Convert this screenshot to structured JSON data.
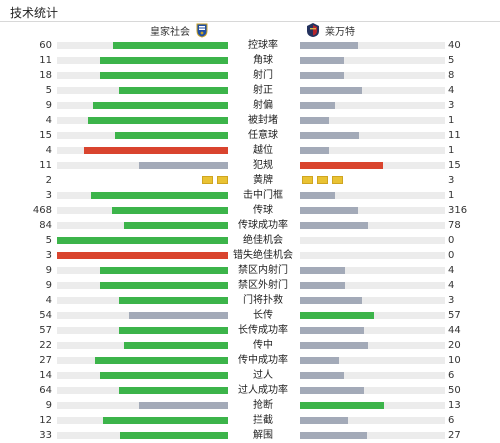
{
  "title": "技术统计",
  "home": {
    "name": "皇家社会",
    "logo_icon": "real-sociedad-crest-icon"
  },
  "away": {
    "name": "莱万特",
    "logo_icon": "levante-crest-icon"
  },
  "colors": {
    "green": "#3cb44a",
    "red": "#d9442e",
    "gray": "#a3aab8",
    "yellow": "#e9c233",
    "track": "#ececec"
  },
  "stats": [
    {
      "label": "控球率",
      "home": "60",
      "away": "40",
      "home_frac": 0.67,
      "away_frac": 0.4,
      "home_color": "green",
      "away_color": "gray"
    },
    {
      "label": "角球",
      "home": "11",
      "away": "5",
      "home_frac": 0.75,
      "away_frac": 0.3,
      "home_color": "green",
      "away_color": "gray"
    },
    {
      "label": "射门",
      "home": "18",
      "away": "8",
      "home_frac": 0.75,
      "away_frac": 0.3,
      "home_color": "green",
      "away_color": "gray"
    },
    {
      "label": "射正",
      "home": "5",
      "away": "4",
      "home_frac": 0.64,
      "away_frac": 0.43,
      "home_color": "green",
      "away_color": "gray"
    },
    {
      "label": "射偏",
      "home": "9",
      "away": "3",
      "home_frac": 0.79,
      "away_frac": 0.24,
      "home_color": "green",
      "away_color": "gray"
    },
    {
      "label": "被封堵",
      "home": "4",
      "away": "1",
      "home_frac": 0.82,
      "away_frac": 0.2,
      "home_color": "green",
      "away_color": "gray"
    },
    {
      "label": "任意球",
      "home": "15",
      "away": "11",
      "home_frac": 0.66,
      "away_frac": 0.41,
      "home_color": "green",
      "away_color": "gray"
    },
    {
      "label": "越位",
      "home": "4",
      "away": "1",
      "home_frac": 0.84,
      "away_frac": 0.2,
      "home_color": "red",
      "away_color": "gray"
    },
    {
      "label": "犯规",
      "home": "11",
      "away": "15",
      "home_frac": 0.52,
      "away_frac": 0.57,
      "home_color": "gray",
      "away_color": "red"
    },
    {
      "label": "黄牌",
      "home": "2",
      "away": "3",
      "home_cards": 2,
      "away_cards": 3
    },
    {
      "label": "击中门框",
      "home": "3",
      "away": "1",
      "home_frac": 0.8,
      "away_frac": 0.24,
      "home_color": "green",
      "away_color": "gray"
    },
    {
      "label": "传球",
      "home": "468",
      "away": "316",
      "home_frac": 0.68,
      "away_frac": 0.4,
      "home_color": "green",
      "away_color": "gray"
    },
    {
      "label": "传球成功率",
      "home": "84",
      "away": "78",
      "home_frac": 0.61,
      "away_frac": 0.47,
      "home_color": "green",
      "away_color": "gray"
    },
    {
      "label": "绝佳机会",
      "home": "5",
      "away": "0",
      "home_frac": 1.0,
      "away_frac": 0.0,
      "home_color": "green",
      "away_color": "gray"
    },
    {
      "label": "错失绝佳机会",
      "home": "3",
      "away": "0",
      "home_frac": 1.0,
      "away_frac": 0.0,
      "home_color": "red",
      "away_color": "gray"
    },
    {
      "label": "禁区内射门",
      "home": "9",
      "away": "4",
      "home_frac": 0.75,
      "away_frac": 0.31,
      "home_color": "green",
      "away_color": "gray"
    },
    {
      "label": "禁区外射门",
      "home": "9",
      "away": "4",
      "home_frac": 0.75,
      "away_frac": 0.31,
      "home_color": "green",
      "away_color": "gray"
    },
    {
      "label": "门将扑救",
      "home": "4",
      "away": "3",
      "home_frac": 0.64,
      "away_frac": 0.43,
      "home_color": "green",
      "away_color": "gray"
    },
    {
      "label": "长传",
      "home": "54",
      "away": "57",
      "home_frac": 0.58,
      "away_frac": 0.51,
      "home_color": "gray",
      "away_color": "green"
    },
    {
      "label": "长传成功率",
      "home": "57",
      "away": "44",
      "home_frac": 0.64,
      "away_frac": 0.44,
      "home_color": "green",
      "away_color": "gray"
    },
    {
      "label": "传中",
      "home": "22",
      "away": "20",
      "home_frac": 0.61,
      "away_frac": 0.47,
      "home_color": "green",
      "away_color": "gray"
    },
    {
      "label": "传中成功率",
      "home": "27",
      "away": "10",
      "home_frac": 0.78,
      "away_frac": 0.27,
      "home_color": "green",
      "away_color": "gray"
    },
    {
      "label": "过人",
      "home": "14",
      "away": "6",
      "home_frac": 0.75,
      "away_frac": 0.3,
      "home_color": "green",
      "away_color": "gray"
    },
    {
      "label": "过人成功率",
      "home": "64",
      "away": "50",
      "home_frac": 0.64,
      "away_frac": 0.44,
      "home_color": "green",
      "away_color": "gray"
    },
    {
      "label": "抢断",
      "home": "9",
      "away": "13",
      "home_frac": 0.52,
      "away_frac": 0.58,
      "home_color": "gray",
      "away_color": "green"
    },
    {
      "label": "拦截",
      "home": "12",
      "away": "6",
      "home_frac": 0.73,
      "away_frac": 0.33,
      "home_color": "green",
      "away_color": "gray"
    },
    {
      "label": "解围",
      "home": "33",
      "away": "27",
      "home_frac": 0.63,
      "away_frac": 0.46,
      "home_color": "green",
      "away_color": "gray"
    }
  ]
}
